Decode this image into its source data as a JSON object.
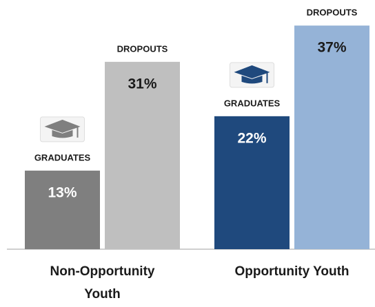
{
  "chart_data": {
    "type": "bar",
    "categories": [
      "Non-Opportunity Youth",
      "Opportunity Youth"
    ],
    "series": [
      {
        "name": "GRADUATES",
        "colors": [
          "#7f7f7f",
          "#1f497d"
        ],
        "values": [
          13,
          22
        ],
        "value_labels": [
          "13%",
          "22%"
        ]
      },
      {
        "name": "DROPOUTS",
        "colors": [
          "#bfbfbf",
          "#95b3d7"
        ],
        "values": [
          31,
          37
        ],
        "value_labels": [
          "31%",
          "37%"
        ]
      }
    ]
  }
}
